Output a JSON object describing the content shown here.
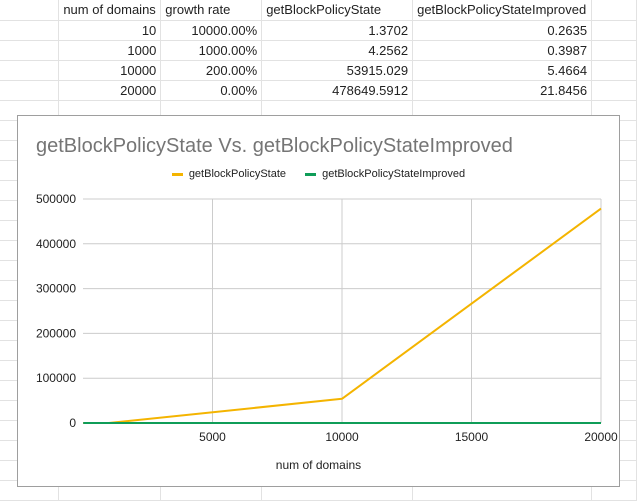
{
  "sheet": {
    "headers": [
      "num of domains",
      "growth rate",
      "getBlockPolicyState",
      "getBlockPolicyStateImproved"
    ],
    "rows": [
      [
        "10",
        "10000.00%",
        "1.3702",
        "0.2635"
      ],
      [
        "1000",
        "1000.00%",
        "4.2562",
        "0.3987"
      ],
      [
        "10000",
        "200.00%",
        "53915.029",
        "5.4664"
      ],
      [
        "20000",
        "0.00%",
        "478649.5912",
        "21.8456"
      ]
    ]
  },
  "chart_data": {
    "type": "line",
    "title": "getBlockPolicyState Vs. getBlockPolicyStateImproved",
    "xlabel": "num of domains",
    "ylabel": "",
    "x": [
      10,
      1000,
      10000,
      20000
    ],
    "series": [
      {
        "name": "getBlockPolicyState",
        "values": [
          1.3702,
          4.2562,
          53915.029,
          478649.5912
        ],
        "color": "#f4b400"
      },
      {
        "name": "getBlockPolicyStateImproved",
        "values": [
          0.2635,
          0.3987,
          5.4664,
          21.8456
        ],
        "color": "#0f9d58"
      }
    ],
    "xlim": [
      0,
      20000
    ],
    "ylim": [
      0,
      500000
    ],
    "xticks": [
      "5000",
      "10000",
      "15000",
      "20000"
    ],
    "xtick_values": [
      5000,
      10000,
      15000,
      20000
    ],
    "yticks": [
      "0",
      "100000",
      "200000",
      "300000",
      "400000",
      "500000"
    ],
    "ytick_values": [
      0,
      100000,
      200000,
      300000,
      400000,
      500000
    ],
    "legend": "top",
    "grid": true
  }
}
